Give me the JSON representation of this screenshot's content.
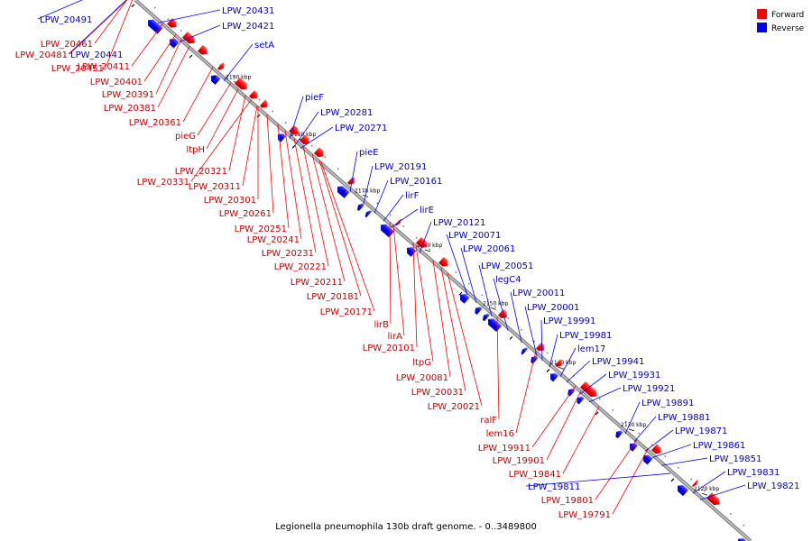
{
  "caption": "Legionella pneumophila 130b draft genome. - 0..3489800",
  "legend": {
    "forward_label": "Forward",
    "reverse_label": "Reverse",
    "forward_color": "#ff0000",
    "reverse_color": "#0000ff"
  },
  "ticks": [
    "2190 kbp",
    "2180 kbp",
    "2170 kbp",
    "2160 kbp",
    "2150 kbp",
    "2140 kbp",
    "2130 kbp",
    "2120 kbp"
  ],
  "forward_genes": [
    "LPW_20461",
    "LPW_20481",
    "LPW_20451",
    "LPW_20411",
    "LPW_20401",
    "LPW_20391",
    "LPW_20381",
    "LPW_20361",
    "pieG",
    "ltpH",
    "LPW_20321",
    "LPW_20331",
    "LPW_20311",
    "LPW_20301",
    "LPW_20261",
    "LPW_20251",
    "LPW_20241",
    "LPW_20231",
    "LPW_20221",
    "LPW_20211",
    "LPW_20181",
    "LPW_20171",
    "lirB",
    "lirA",
    "LPW_20101",
    "ltpG",
    "LPW_20081",
    "LPW_20031",
    "LPW_20021",
    "ralF",
    "lem16",
    "LPW_19911",
    "LPW_19901",
    "LPW_19841",
    "LPW_19801",
    "LPW_19791"
  ],
  "reverse_genes": [
    "LPW_20491",
    "LPW_20431",
    "LPW_20421",
    "LPW_20441",
    "setA",
    "pieF",
    "LPW_20281",
    "LPW_20271",
    "pieE",
    "LPW_20191",
    "LPW_20161",
    "lirF",
    "lirE",
    "LPW_20121",
    "LPW_20071",
    "LPW_20061",
    "LPW_20051",
    "legC4",
    "LPW_20011",
    "LPW_20001",
    "LPW_19991",
    "LPW_19981",
    "lem17",
    "LPW_19941",
    "LPW_19931",
    "LPW_19921",
    "LPW_19891",
    "LPW_19881",
    "LPW_19871",
    "LPW_19861",
    "LPW_19851",
    "LPW_19831",
    "LPW_19811",
    "LPW_19821"
  ]
}
